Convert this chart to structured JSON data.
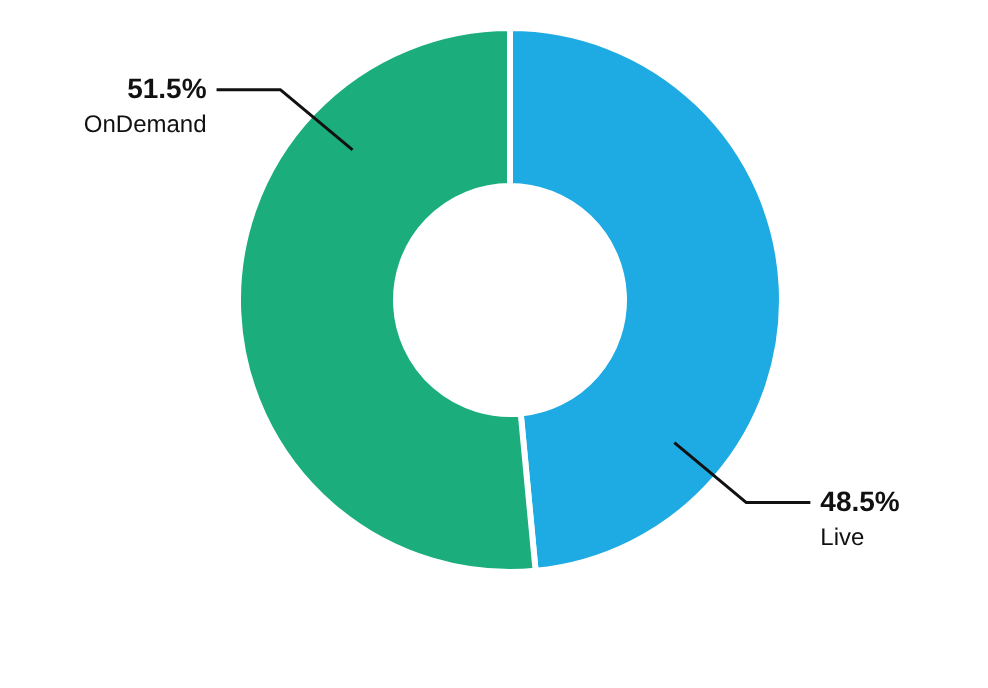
{
  "chart_data": {
    "type": "donut",
    "categories": [
      "Live",
      "OnDemand"
    ],
    "values": [
      48.5,
      51.5
    ],
    "colors": [
      "#1eaae2",
      "#1bae7c"
    ],
    "value_labels": [
      "48.5%",
      "51.5%"
    ]
  }
}
